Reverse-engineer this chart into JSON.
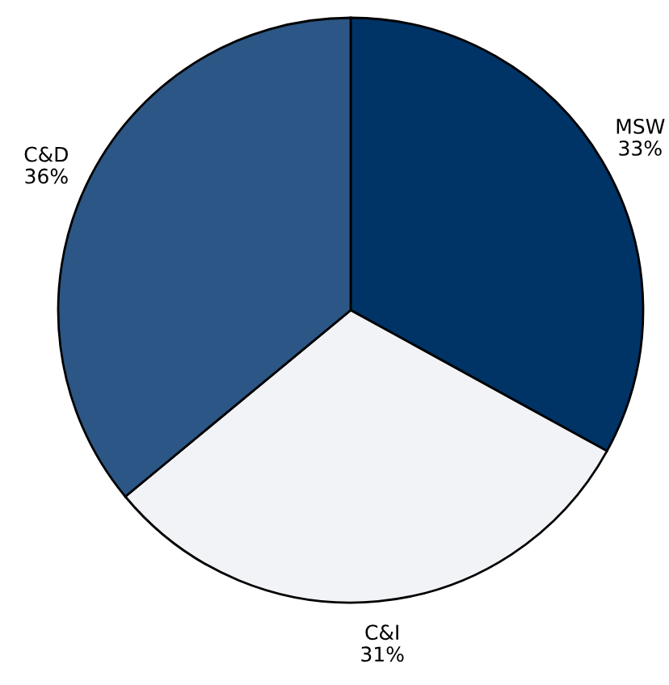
{
  "chart_data": {
    "type": "pie",
    "categories": [
      "MSW",
      "C&I",
      "C&D"
    ],
    "values": [
      33,
      31,
      36
    ],
    "value_labels": [
      "33%",
      "31%",
      "36%"
    ],
    "colors": [
      "#003366",
      "#f2f3f7",
      "#2c5685"
    ],
    "legend": false
  }
}
